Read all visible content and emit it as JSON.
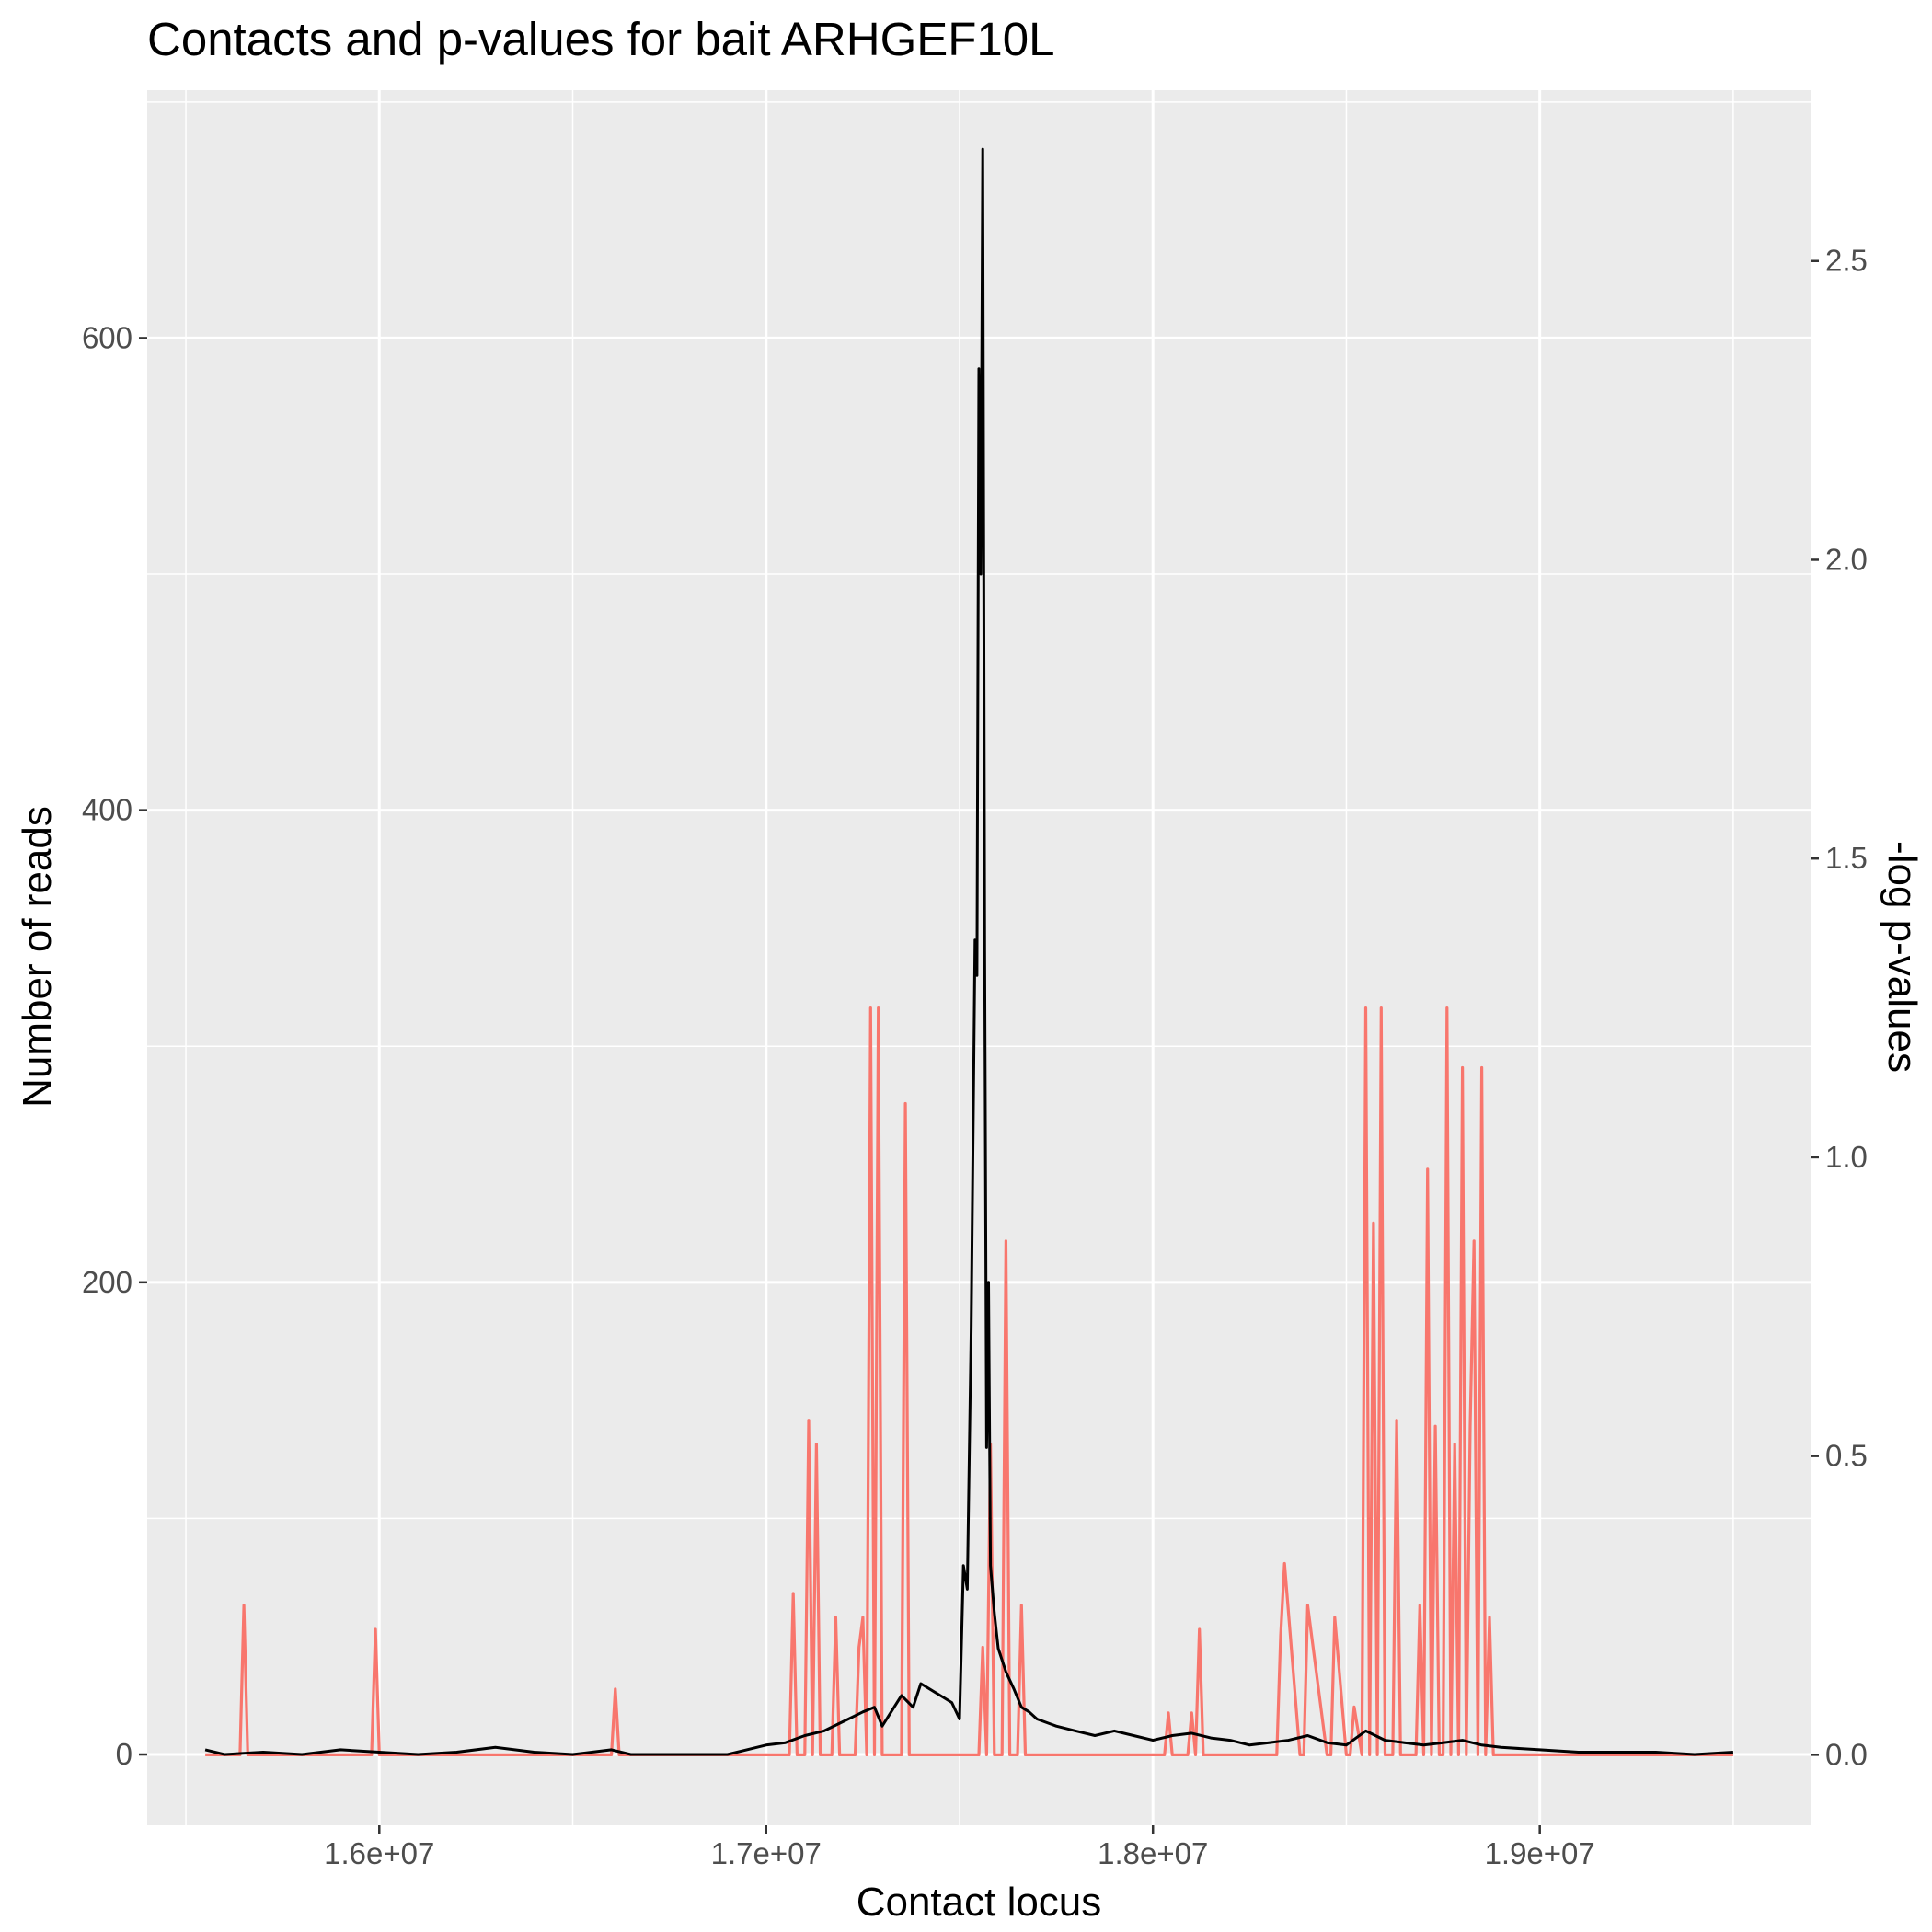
{
  "chart_data": {
    "type": "line",
    "title": "Contacts and p-values for bait ARHGEF10L",
    "xlabel": "Contact locus",
    "ylabel": "Number of reads",
    "y2label": "-log p-values",
    "xlim": [
      15400000,
      19700000
    ],
    "ylim": [
      -30,
      705
    ],
    "y2lim": [
      -0.118,
      2.786
    ],
    "xticks": [
      16000000,
      17000000,
      18000000,
      19000000
    ],
    "xtick_labels": [
      "1.6e+07",
      "1.7e+07",
      "1.8e+07",
      "1.9e+07"
    ],
    "yticks": [
      0,
      200,
      400,
      600
    ],
    "ytick_labels": [
      "0",
      "200",
      "400",
      "600"
    ],
    "y2ticks": [
      0.0,
      0.5,
      1.0,
      1.5,
      2.0,
      2.5
    ],
    "y2tick_labels": [
      "0.0",
      "0.5",
      "1.0",
      "1.5",
      "2.0",
      "2.5"
    ],
    "grid": true,
    "background": "#ebebeb",
    "series": [
      {
        "axis": "right",
        "color": "#f8766d",
        "x": [
          15550000,
          15640000,
          15650000,
          15660000,
          15980000,
          15990000,
          16000000,
          16600000,
          16610000,
          16620000,
          17060000,
          17070000,
          17080000,
          17100000,
          17110000,
          17120000,
          17130000,
          17140000,
          17170000,
          17180000,
          17190000,
          17230000,
          17240000,
          17250000,
          17260000,
          17270000,
          17280000,
          17290000,
          17300000,
          17310000,
          17350000,
          17360000,
          17370000,
          17500000,
          17550000,
          17560000,
          17570000,
          17580000,
          17590000,
          17600000,
          17610000,
          17620000,
          17630000,
          17640000,
          17650000,
          17660000,
          17670000,
          17680000,
          17700000,
          17710000,
          17750000,
          18030000,
          18040000,
          18050000,
          18090000,
          18100000,
          18110000,
          18120000,
          18130000,
          18320000,
          18330000,
          18340000,
          18380000,
          18390000,
          18400000,
          18450000,
          18460000,
          18470000,
          18500000,
          18510000,
          18520000,
          18540000,
          18550000,
          18560000,
          18570000,
          18580000,
          18590000,
          18600000,
          18610000,
          18620000,
          18630000,
          18640000,
          18680000,
          18690000,
          18700000,
          18710000,
          18720000,
          18730000,
          18740000,
          18750000,
          18760000,
          18770000,
          18780000,
          18790000,
          18800000,
          18810000,
          18820000,
          18830000,
          18840000,
          18850000,
          18860000,
          18870000,
          18880000,
          18890000,
          18900000,
          19500000
        ],
        "y": [
          0.0,
          0.0,
          0.25,
          0.0,
          0.0,
          0.21,
          0.0,
          0.0,
          0.11,
          0.0,
          0.0,
          0.27,
          0.0,
          0.0,
          0.56,
          0.0,
          0.52,
          0.0,
          0.0,
          0.23,
          0.0,
          0.0,
          0.18,
          0.23,
          0.0,
          1.25,
          0.0,
          1.25,
          0.0,
          0.0,
          0.0,
          1.09,
          0.0,
          0.0,
          0.0,
          0.18,
          0.0,
          0.52,
          0.0,
          0.0,
          0.0,
          0.86,
          0.0,
          0.0,
          0.0,
          0.25,
          0.0,
          0.0,
          0.0,
          0.0,
          0.0,
          0.0,
          0.07,
          0.0,
          0.0,
          0.07,
          0.0,
          0.21,
          0.0,
          0.0,
          0.2,
          0.32,
          0.0,
          0.0,
          0.25,
          0.0,
          0.0,
          0.23,
          0.0,
          0.0,
          0.08,
          0.0,
          1.25,
          0.0,
          0.89,
          0.0,
          1.25,
          0.0,
          0.0,
          0.0,
          0.56,
          0.0,
          0.0,
          0.25,
          0.0,
          0.98,
          0.0,
          0.55,
          0.0,
          0.0,
          1.25,
          0.0,
          0.52,
          0.0,
          1.15,
          0.0,
          0.55,
          0.86,
          0.0,
          1.15,
          0.0,
          0.23,
          0.0,
          0.0,
          0.0,
          0.0
        ]
      },
      {
        "axis": "left",
        "color": "#000000",
        "x": [
          15550000,
          15600000,
          15700000,
          15800000,
          15900000,
          16000000,
          16100000,
          16200000,
          16300000,
          16400000,
          16500000,
          16600000,
          16650000,
          16700000,
          16800000,
          16900000,
          16950000,
          17000000,
          17050000,
          17100000,
          17150000,
          17200000,
          17250000,
          17280000,
          17300000,
          17350000,
          17380000,
          17400000,
          17450000,
          17480000,
          17500000,
          17510000,
          17520000,
          17530000,
          17540000,
          17545000,
          17550000,
          17555000,
          17560000,
          17565000,
          17570000,
          17575000,
          17580000,
          17590000,
          17600000,
          17620000,
          17640000,
          17660000,
          17680000,
          17700000,
          17750000,
          17800000,
          17850000,
          17900000,
          17950000,
          18000000,
          18050000,
          18100000,
          18150000,
          18200000,
          18250000,
          18300000,
          18350000,
          18400000,
          18450000,
          18500000,
          18550000,
          18600000,
          18650000,
          18700000,
          18750000,
          18800000,
          18850000,
          18900000,
          19000000,
          19100000,
          19200000,
          19300000,
          19400000,
          19500000
        ],
        "y": [
          2,
          0,
          1,
          0,
          2,
          1,
          0,
          1,
          3,
          1,
          0,
          2,
          0,
          0,
          0,
          0,
          2,
          4,
          5,
          8,
          10,
          14,
          18,
          20,
          12,
          25,
          20,
          30,
          25,
          22,
          15,
          80,
          70,
          180,
          345,
          330,
          587,
          500,
          680,
          340,
          130,
          200,
          80,
          60,
          45,
          35,
          28,
          20,
          18,
          15,
          12,
          10,
          8,
          10,
          8,
          6,
          8,
          9,
          7,
          6,
          4,
          5,
          6,
          8,
          5,
          4,
          10,
          6,
          5,
          4,
          5,
          6,
          4,
          3,
          2,
          1,
          1,
          1,
          0,
          1
        ]
      }
    ]
  }
}
